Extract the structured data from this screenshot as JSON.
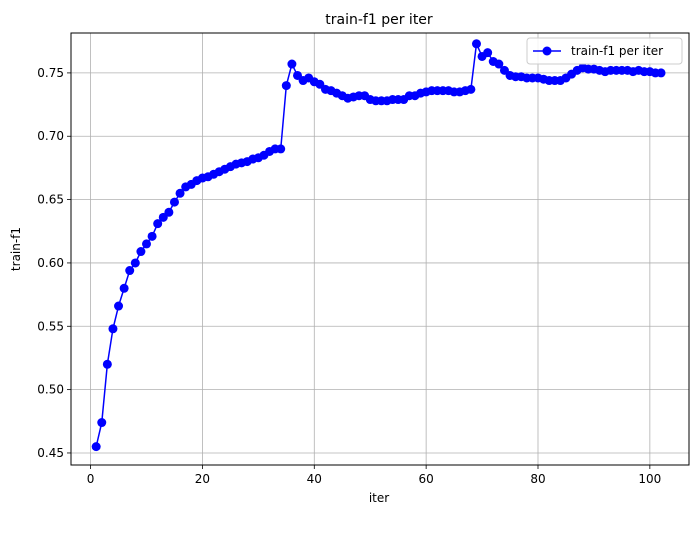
{
  "chart_data": {
    "type": "line",
    "title": "train-f1 per iter",
    "xlabel": "iter",
    "ylabel": "train-f1",
    "xlim": [
      -3.5,
      107
    ],
    "ylim": [
      0.4405,
      0.7815
    ],
    "xticks": [
      0,
      20,
      40,
      60,
      80,
      100
    ],
    "yticks": [
      0.45,
      0.5,
      0.55,
      0.6,
      0.65,
      0.7,
      0.75
    ],
    "ytick_labels": [
      "0.45",
      "0.50",
      "0.55",
      "0.60",
      "0.65",
      "0.70",
      "0.75"
    ],
    "grid": true,
    "legend": {
      "position": "top-right",
      "entries": [
        "train-f1 per iter"
      ]
    },
    "series": [
      {
        "name": "train-f1 per iter",
        "color": "#0000ff",
        "marker": "circle",
        "x": [
          1,
          2,
          3,
          4,
          5,
          6,
          7,
          8,
          9,
          10,
          11,
          12,
          13,
          14,
          15,
          16,
          17,
          18,
          19,
          20,
          21,
          22,
          23,
          24,
          25,
          26,
          27,
          28,
          29,
          30,
          31,
          32,
          33,
          34,
          35,
          36,
          37,
          38,
          39,
          40,
          41,
          42,
          43,
          44,
          45,
          46,
          47,
          48,
          49,
          50,
          51,
          52,
          53,
          54,
          55,
          56,
          57,
          58,
          59,
          60,
          61,
          62,
          63,
          64,
          65,
          66,
          67,
          68,
          69,
          70,
          71,
          72,
          73,
          74,
          75,
          76,
          77,
          78,
          79,
          80,
          81,
          82,
          83,
          84,
          85,
          86,
          87,
          88,
          89,
          90,
          91,
          92,
          93,
          94,
          95,
          96,
          97,
          98,
          99,
          100,
          101,
          102
        ],
        "y": [
          0.455,
          0.474,
          0.52,
          0.548,
          0.566,
          0.58,
          0.594,
          0.6,
          0.609,
          0.615,
          0.621,
          0.631,
          0.636,
          0.64,
          0.648,
          0.655,
          0.66,
          0.662,
          0.665,
          0.667,
          0.668,
          0.67,
          0.672,
          0.674,
          0.676,
          0.678,
          0.679,
          0.68,
          0.682,
          0.683,
          0.685,
          0.688,
          0.69,
          0.69,
          0.74,
          0.757,
          0.748,
          0.744,
          0.746,
          0.743,
          0.741,
          0.737,
          0.736,
          0.734,
          0.732,
          0.73,
          0.731,
          0.732,
          0.732,
          0.729,
          0.728,
          0.728,
          0.728,
          0.729,
          0.729,
          0.729,
          0.732,
          0.732,
          0.734,
          0.735,
          0.736,
          0.736,
          0.736,
          0.736,
          0.735,
          0.735,
          0.736,
          0.737,
          0.773,
          0.763,
          0.766,
          0.759,
          0.757,
          0.752,
          0.748,
          0.747,
          0.747,
          0.746,
          0.746,
          0.746,
          0.745,
          0.744,
          0.744,
          0.744,
          0.746,
          0.749,
          0.752,
          0.754,
          0.753,
          0.753,
          0.752,
          0.751,
          0.752,
          0.752,
          0.752,
          0.752,
          0.751,
          0.752,
          0.751,
          0.751,
          0.75,
          0.75
        ]
      }
    ]
  }
}
